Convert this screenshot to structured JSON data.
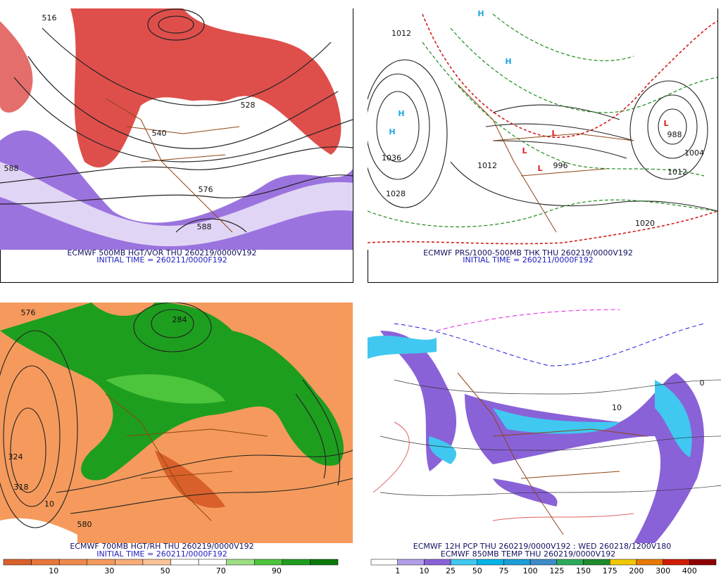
{
  "panels": [
    {
      "caption": "ECMWF 500MB HGT/VOR THU 260219/0000V192",
      "initial_time": "INITIAL TIME = 260211/0000F192",
      "labels": [
        "516",
        "588",
        "576",
        "528",
        "540",
        "588"
      ]
    },
    {
      "caption": "ECMWF PRS/1000-500MB THK THU 260219/0000V192",
      "initial_time": "INITIAL TIME = 260211/0000F192",
      "labels": [
        "1012",
        "1036",
        "1028",
        "1012",
        "996",
        "988",
        "1004",
        "1012",
        "1020",
        "H",
        "H",
        "H",
        "H",
        "L",
        "L",
        "L",
        "L"
      ]
    },
    {
      "caption": "ECMWF 700MB HGT/RH THU 260219/0000V192",
      "initial_time": "INITIAL TIME = 260211/0000F192",
      "labels": [
        "324",
        "576",
        "284",
        "318",
        "10",
        "580"
      ],
      "colorbar": {
        "labels": [
          "10",
          "30",
          "50",
          "70",
          "90"
        ],
        "colors": [
          "#d9602a",
          "#e8773a",
          "#f08a4a",
          "#f59a5c",
          "#f8ad78",
          "#fbc39a",
          "#ffffff",
          "#ffffff",
          "#9ede84",
          "#4cc43c",
          "#1e9e1e",
          "#0b7a0b"
        ]
      }
    },
    {
      "caption": "ECMWF 12H PCP THU 260219/0000V192 : WED 260218/1200V180",
      "initial_time": "ECMWF 850MB TEMP THU 260219/0000V192",
      "labels": [
        "10",
        "0"
      ],
      "colorbar": {
        "labels": [
          "1",
          "10",
          "25",
          "50",
          "75",
          "100",
          "125",
          "150",
          "175",
          "200",
          "300",
          "400"
        ],
        "colors": [
          "#ffffff",
          "#b49ee8",
          "#8a62d8",
          "#40c8f0",
          "#00b4e8",
          "#1c9ed8",
          "#3c8cc8",
          "#2caa5c",
          "#1e8c2c",
          "#f0c800",
          "#e87800",
          "#d01c00",
          "#8c0000"
        ]
      }
    }
  ]
}
